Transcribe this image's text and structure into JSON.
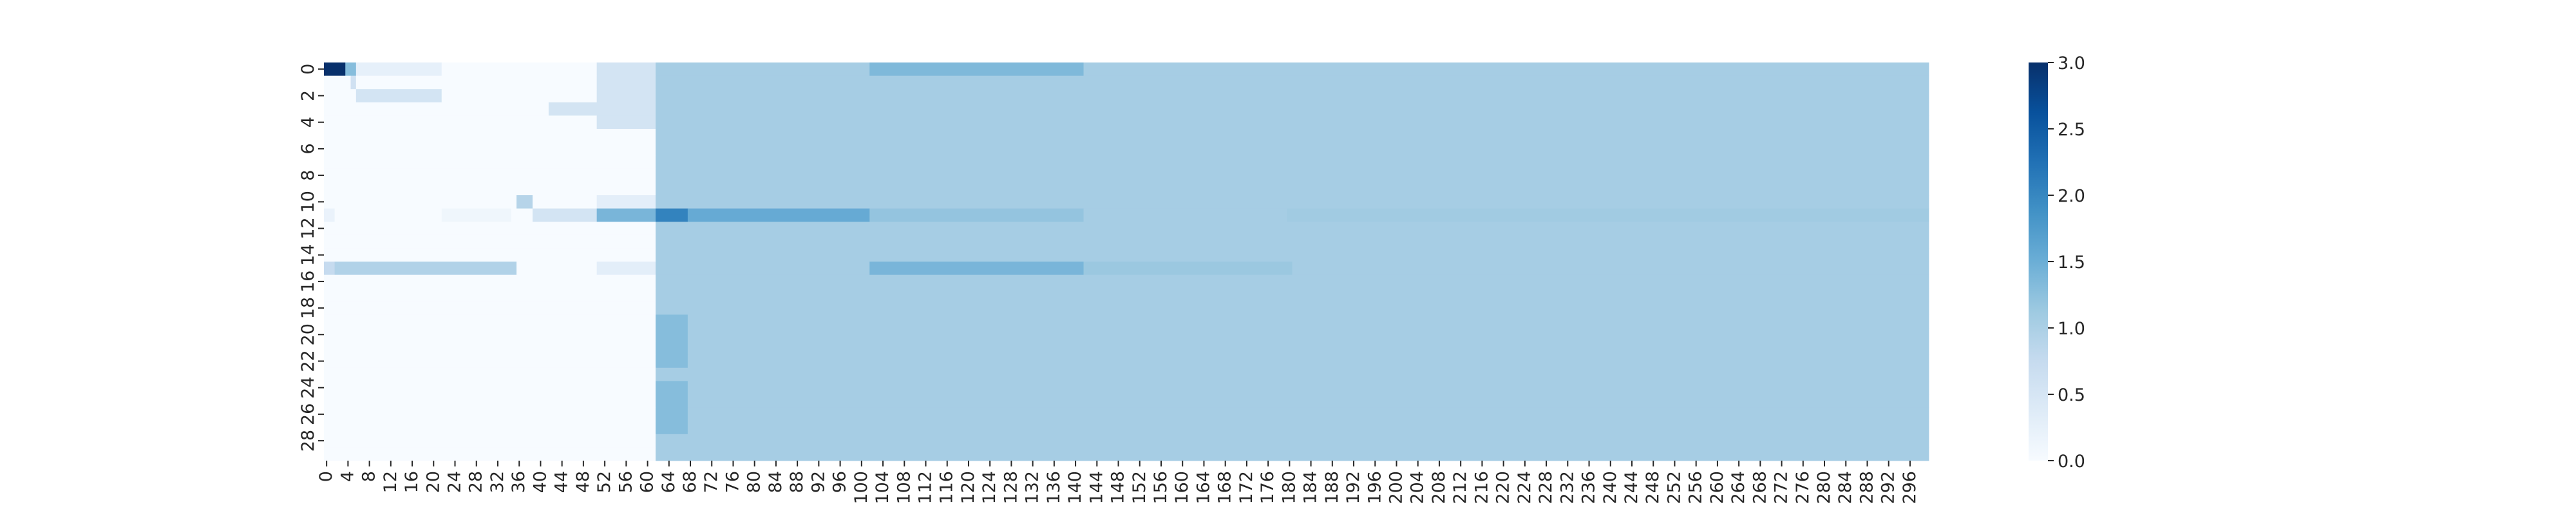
{
  "chart_data": {
    "type": "heatmap",
    "title": "",
    "xlabel": "",
    "ylabel": "",
    "n_rows": 30,
    "n_cols": 300,
    "x_tick_step": 4,
    "y_tick_step": 2,
    "vmin": 0.0,
    "vmax": 3.0,
    "colormap": "Blues",
    "colorbar": {
      "position": "right",
      "ticks": [
        "0.0",
        "0.5",
        "1.0",
        "1.5",
        "2.0",
        "2.5",
        "3.0"
      ],
      "tick_values": [
        0.0,
        0.5,
        1.0,
        1.5,
        2.0,
        2.5,
        3.0
      ]
    },
    "default_value": 0.0,
    "regions": [
      {
        "rows": [
          0,
          29
        ],
        "cols": [
          62,
          299
        ],
        "value": 1.05
      },
      {
        "rows": [
          0,
          4
        ],
        "cols": [
          51,
          61
        ],
        "value": 0.55
      },
      {
        "rows": [
          3,
          3
        ],
        "cols": [
          42,
          50
        ],
        "value": 0.55
      },
      {
        "rows": [
          0,
          0
        ],
        "cols": [
          0,
          3
        ],
        "value": 3.0
      },
      {
        "rows": [
          0,
          0
        ],
        "cols": [
          4,
          5
        ],
        "value": 1.3
      },
      {
        "rows": [
          0,
          0
        ],
        "cols": [
          6,
          21
        ],
        "value": 0.25
      },
      {
        "rows": [
          1,
          1
        ],
        "cols": [
          5,
          5
        ],
        "value": 0.6
      },
      {
        "rows": [
          2,
          2
        ],
        "cols": [
          6,
          21
        ],
        "value": 0.55
      },
      {
        "rows": [
          0,
          0
        ],
        "cols": [
          102,
          141
        ],
        "value": 1.35
      },
      {
        "rows": [
          10,
          10
        ],
        "cols": [
          36,
          38
        ],
        "value": 0.9
      },
      {
        "rows": [
          10,
          10
        ],
        "cols": [
          51,
          61
        ],
        "value": 0.3
      },
      {
        "rows": [
          11,
          11
        ],
        "cols": [
          0,
          1
        ],
        "value": 0.2
      },
      {
        "rows": [
          11,
          11
        ],
        "cols": [
          22,
          34
        ],
        "value": 0.12
      },
      {
        "rows": [
          11,
          11
        ],
        "cols": [
          39,
          50
        ],
        "value": 0.55
      },
      {
        "rows": [
          11,
          11
        ],
        "cols": [
          51,
          61
        ],
        "value": 1.4
      },
      {
        "rows": [
          11,
          11
        ],
        "cols": [
          62,
          67
        ],
        "value": 2.05
      },
      {
        "rows": [
          11,
          11
        ],
        "cols": [
          68,
          101
        ],
        "value": 1.55
      },
      {
        "rows": [
          11,
          11
        ],
        "cols": [
          102,
          141
        ],
        "value": 1.2
      },
      {
        "rows": [
          11,
          11
        ],
        "cols": [
          180,
          299
        ],
        "value": 1.1
      },
      {
        "rows": [
          15,
          15
        ],
        "cols": [
          0,
          1
        ],
        "value": 0.75
      },
      {
        "rows": [
          15,
          15
        ],
        "cols": [
          2,
          35
        ],
        "value": 0.95
      },
      {
        "rows": [
          15,
          15
        ],
        "cols": [
          51,
          61
        ],
        "value": 0.3
      },
      {
        "rows": [
          15,
          15
        ],
        "cols": [
          102,
          141
        ],
        "value": 1.4
      },
      {
        "rows": [
          15,
          15
        ],
        "cols": [
          142,
          180
        ],
        "value": 1.15
      },
      {
        "rows": [
          19,
          22
        ],
        "cols": [
          62,
          67
        ],
        "value": 1.3
      },
      {
        "rows": [
          24,
          27
        ],
        "cols": [
          62,
          67
        ],
        "value": 1.3
      }
    ]
  }
}
